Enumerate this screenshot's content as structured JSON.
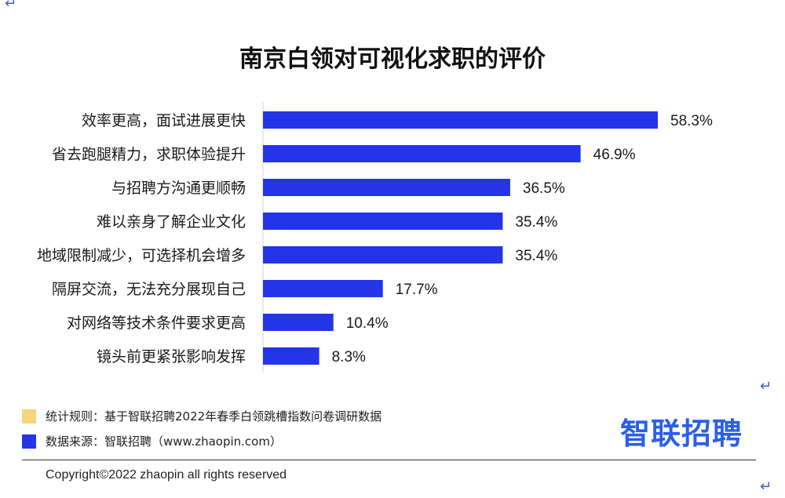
{
  "title": "南京白领对可视化求职的评价",
  "colors": {
    "bar": "#2435e8",
    "swatch_rule": "#f5d67a",
    "swatch_source": "#2435e8",
    "brand": "#2b5fe8"
  },
  "chart_data": {
    "type": "bar",
    "orientation": "horizontal",
    "categories": [
      "效率更高，面试进展更快",
      "省去跑腿精力，求职体验提升",
      "与招聘方沟通更顺畅",
      "难以亲身了解企业文化",
      "地域限制减少，可选择机会增多",
      "隔屏交流，无法充分展现自己",
      "对网络等技术条件要求更高",
      "镜头前更紧张影响发挥"
    ],
    "values": [
      58.3,
      46.9,
      36.5,
      35.4,
      35.4,
      17.7,
      10.4,
      8.3
    ],
    "value_labels": [
      "58.3%",
      "46.9%",
      "36.5%",
      "35.4%",
      "35.4%",
      "17.7%",
      "10.4%",
      "8.3%"
    ],
    "xlim": [
      0,
      60
    ],
    "grid": false,
    "legend": "none"
  },
  "footer": {
    "rule_text": "统计规则：基于智联招聘2022年春季白领跳槽指数问卷调研数据",
    "source_text": "数据来源：智联招聘（www.zhaopin.com）",
    "brand": "智联招聘",
    "copyright": "Copyright©2022 zhaopin all rights reserved"
  },
  "return_mark": "↵"
}
